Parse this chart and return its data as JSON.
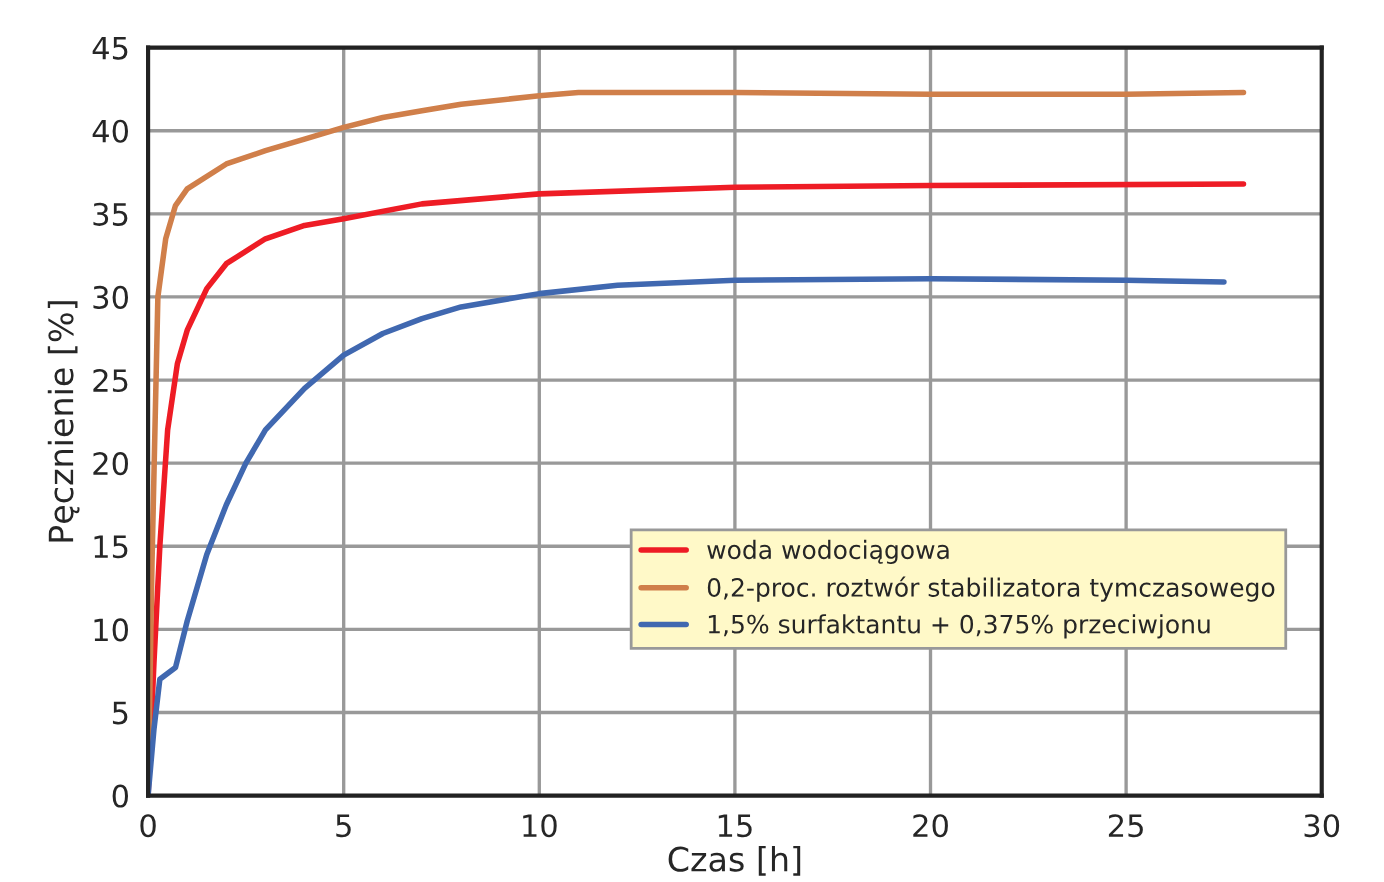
{
  "chart_data": {
    "type": "line",
    "xlabel": "Czas [h]",
    "ylabel": "Pęcznienie [%]",
    "xlim": [
      0,
      30
    ],
    "ylim": [
      0,
      45
    ],
    "xticks": [
      0,
      5,
      10,
      15,
      20,
      25,
      30
    ],
    "yticks": [
      0,
      5,
      10,
      15,
      20,
      25,
      30,
      35,
      40,
      45
    ],
    "grid": true,
    "legend": "bottom right",
    "marker": "none",
    "line_style": "solid",
    "series": [
      {
        "name": "woda wodociągowa",
        "color": "#ee1c25",
        "x": [
          0,
          0.15,
          0.3,
          0.5,
          0.75,
          1,
          1.5,
          2,
          3,
          4,
          5,
          7,
          10,
          15,
          20,
          28
        ],
        "values": [
          0,
          8,
          15,
          22,
          26,
          28,
          30.5,
          32,
          33.5,
          34.3,
          34.7,
          35.6,
          36.2,
          36.6,
          36.7,
          36.8
        ]
      },
      {
        "name": "0,2-proc. roztwór stabilizatora tymczasowego",
        "color": "#d07f4a",
        "x": [
          0,
          0.1,
          0.25,
          0.45,
          0.7,
          1,
          2,
          3,
          4,
          5,
          6,
          7,
          8,
          10,
          11,
          15,
          20,
          25,
          28
        ],
        "values": [
          0,
          14,
          30,
          33.5,
          35.5,
          36.5,
          38,
          38.8,
          39.5,
          40.2,
          40.8,
          41.2,
          41.6,
          42.1,
          42.3,
          42.3,
          42.2,
          42.2,
          42.3
        ]
      },
      {
        "name": "1,5% surfaktantu + 0,375% przeciwjonu",
        "color": "#4068b0",
        "x": [
          0,
          0.15,
          0.3,
          0.7,
          1,
          1.5,
          2,
          2.5,
          3,
          4,
          5,
          6,
          7,
          8,
          10,
          12,
          15,
          20,
          25,
          27.5
        ],
        "values": [
          0,
          4,
          7,
          7.7,
          10.5,
          14.5,
          17.5,
          20,
          22,
          24.5,
          26.5,
          27.8,
          28.7,
          29.4,
          30.2,
          30.7,
          31,
          31.1,
          31,
          30.9
        ]
      }
    ]
  }
}
